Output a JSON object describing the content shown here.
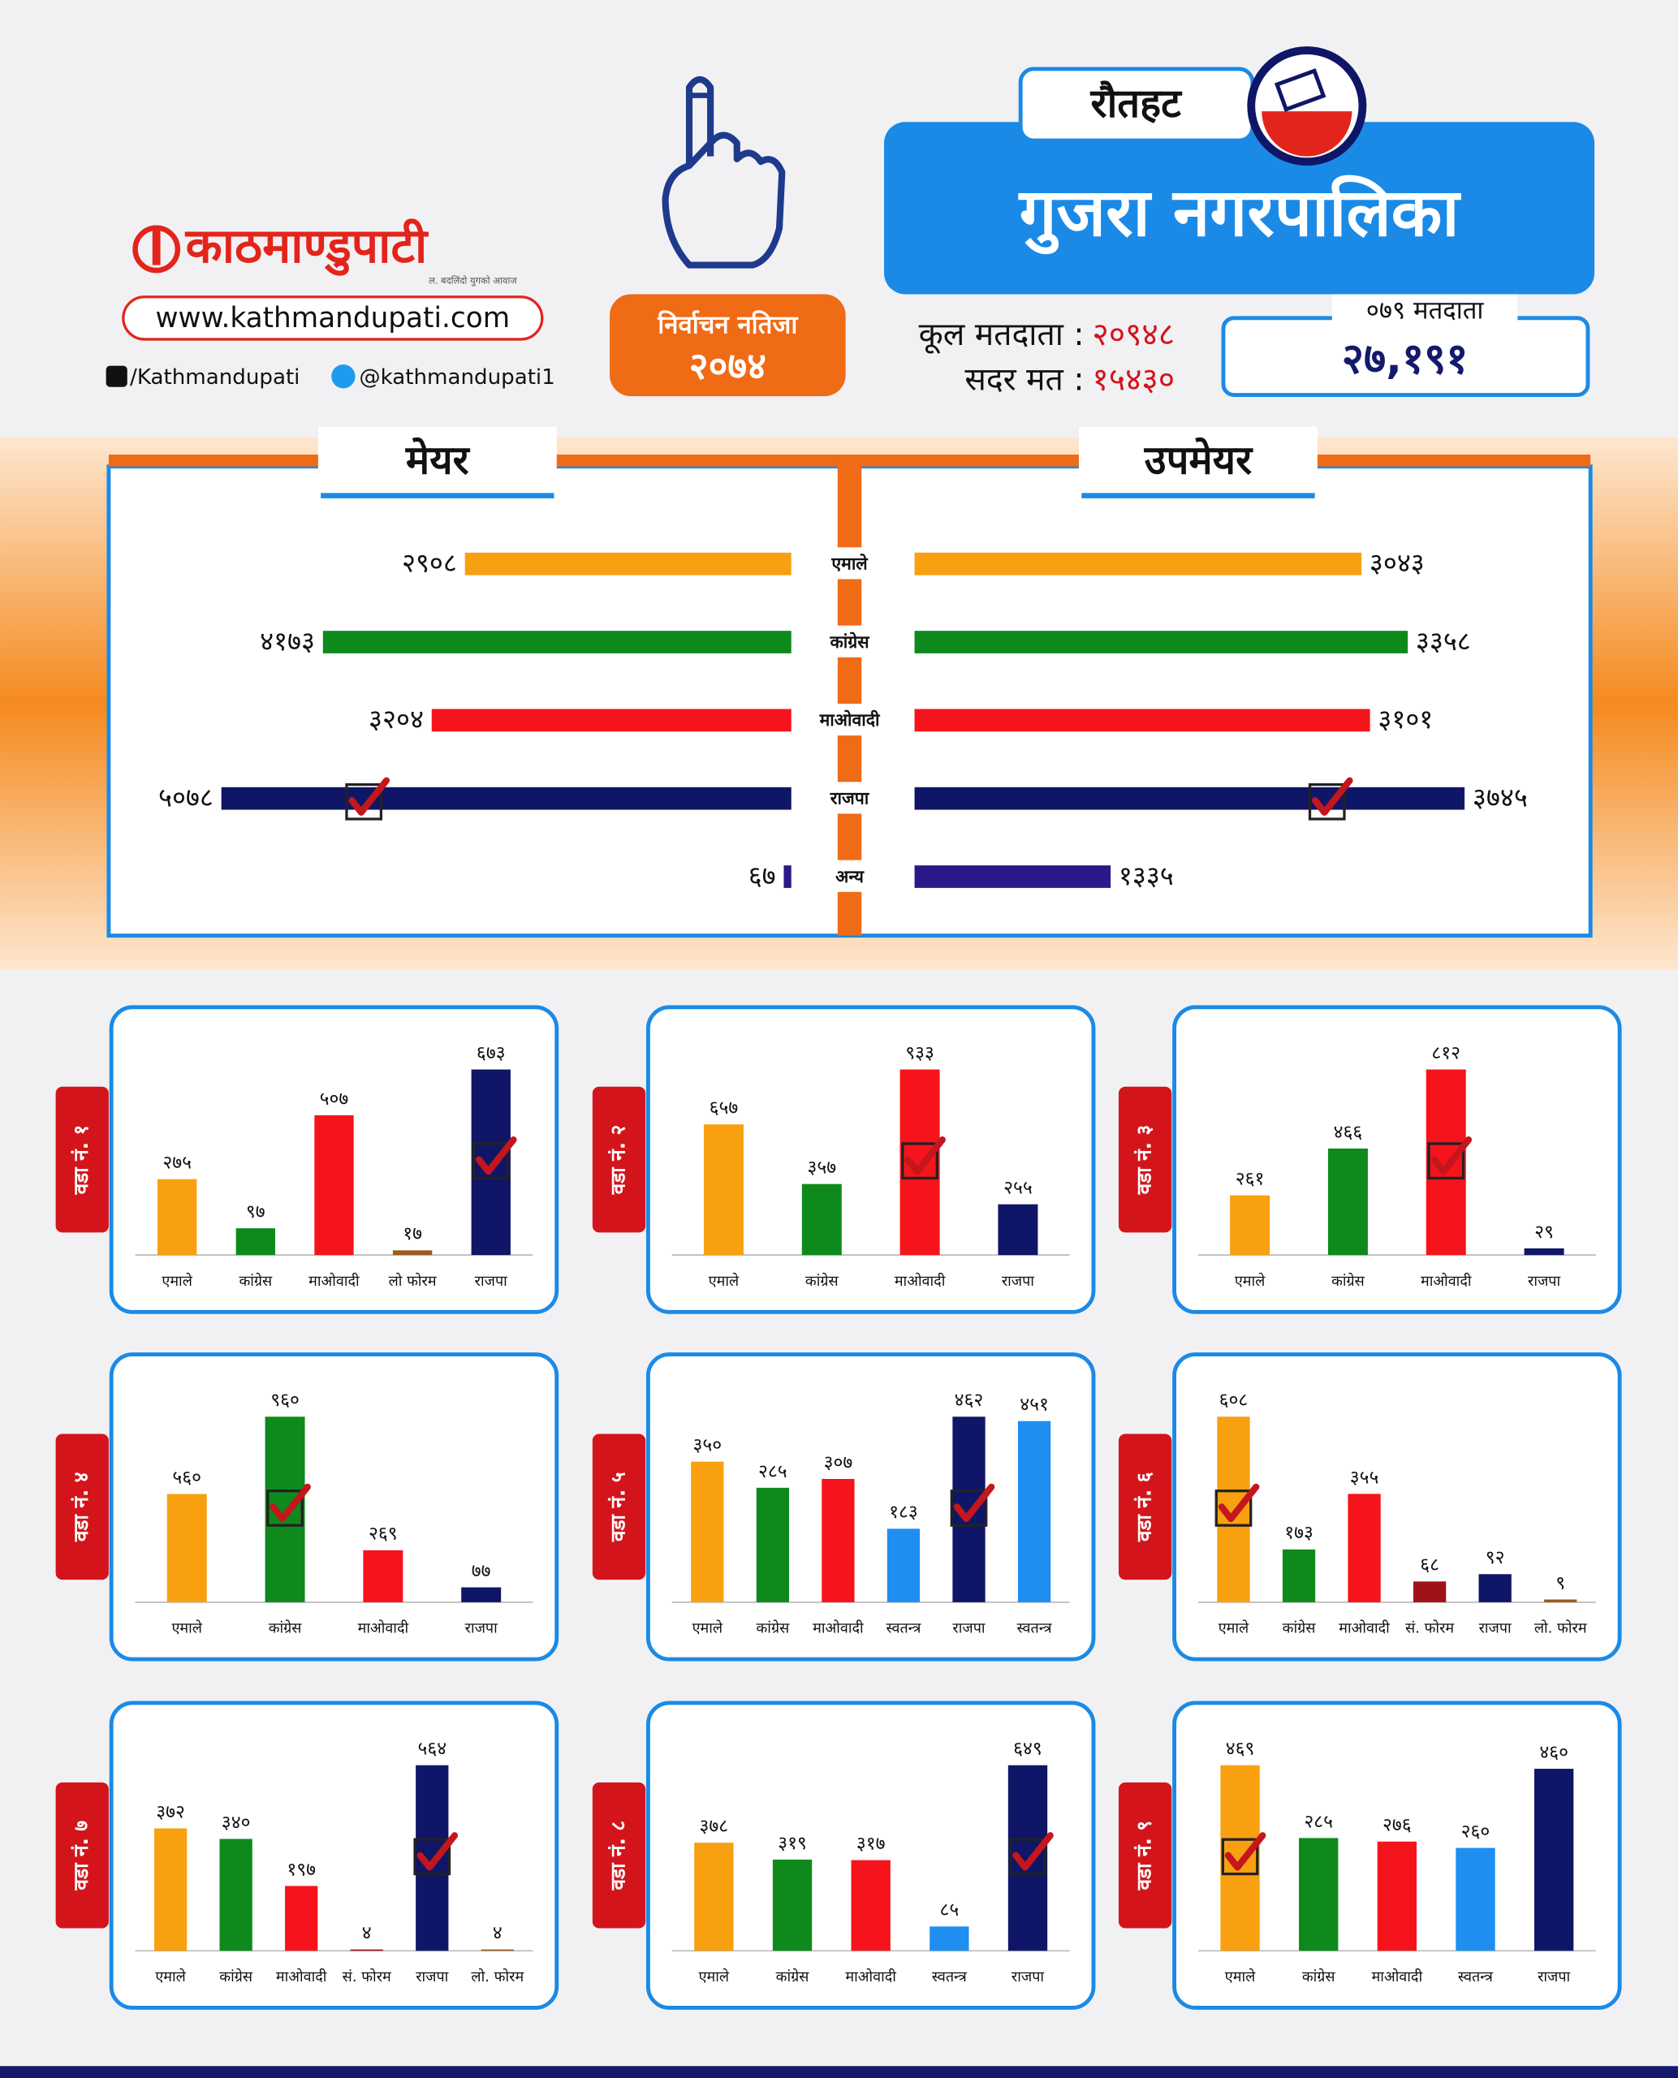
{
  "header": {
    "logo": "काठमाण्डुपाटी",
    "tagline": "ल. बदलिंदो युगको आवाज",
    "website": "www.kathmandupati.com",
    "facebook": "/Kathmandupati",
    "twitter": "@kathmandupati1",
    "badge_title": "निर्वाचन नतिजा",
    "badge_year": "२०७४",
    "district": "रौतहट",
    "municipality": "गुजरा नगरपालिका",
    "total_voters_label": "कूल मतदाता :",
    "total_voters": "२०९४८",
    "valid_votes_label": "सदर मत :",
    "valid_votes": "१५४३०",
    "voters_079_label": "०७९ मतदाता",
    "voters_079": "२७,१९१"
  },
  "chart_data": [
    {
      "type": "diverging-bar",
      "categories": [
        "एमाले",
        "कांग्रेस",
        "माओवादी",
        "राजपा",
        "अन्य"
      ],
      "colors": [
        "#f8a010",
        "#0e8a1c",
        "#f5141c",
        "#0f1667",
        "#2c1888"
      ],
      "series": [
        {
          "name": "मेयर",
          "values": [
            2908,
            4173,
            3204,
            5078,
            67
          ],
          "value_labels": [
            "२९०८",
            "४१७३",
            "३२०४",
            "५०७८",
            "६७"
          ],
          "winner": 3
        },
        {
          "name": "उपमेयर",
          "values": [
            3043,
            3358,
            3101,
            3745,
            1335
          ],
          "value_labels": [
            "३०४३",
            "३३५८",
            "३१०१",
            "३७४५",
            "१३३५"
          ],
          "winner": 3
        }
      ]
    },
    {
      "type": "bar",
      "title": "वडा नं. १",
      "categories": [
        "एमाले",
        "कांग्रेस",
        "माओवादी",
        "लो फोरम",
        "राजपा"
      ],
      "values": [
        275,
        97,
        507,
        17,
        673
      ],
      "value_labels": [
        "२७५",
        "९७",
        "५०७",
        "१७",
        "६७३"
      ],
      "colors": [
        "#f8a010",
        "#0e8a1c",
        "#f5141c",
        "#9c5a1c",
        "#0f1667"
      ],
      "winner": 4
    },
    {
      "type": "bar",
      "title": "वडा नं. २",
      "categories": [
        "एमाले",
        "कांग्रेस",
        "माओवादी",
        "राजपा"
      ],
      "values": [
        657,
        357,
        933,
        255
      ],
      "value_labels": [
        "६५७",
        "३५७",
        "९३३",
        "२५५"
      ],
      "colors": [
        "#f8a010",
        "#0e8a1c",
        "#f5141c",
        "#0f1667"
      ],
      "winner": 2
    },
    {
      "type": "bar",
      "title": "वडा नं. ३",
      "categories": [
        "एमाले",
        "कांग्रेस",
        "माओवादी",
        "राजपा"
      ],
      "values": [
        261,
        466,
        812,
        29
      ],
      "value_labels": [
        "२६१",
        "४६६",
        "८१२",
        "२९"
      ],
      "colors": [
        "#f8a010",
        "#0e8a1c",
        "#f5141c",
        "#0f1667"
      ],
      "winner": 2
    },
    {
      "type": "bar",
      "title": "वडा नं. ४",
      "categories": [
        "एमाले",
        "कांग्रेस",
        "माओवादी",
        "राजपा"
      ],
      "values": [
        560,
        960,
        269,
        77
      ],
      "value_labels": [
        "५६०",
        "९६०",
        "२६९",
        "७७"
      ],
      "colors": [
        "#f8a010",
        "#0e8a1c",
        "#f5141c",
        "#0f1667"
      ],
      "winner": 1
    },
    {
      "type": "bar",
      "title": "वडा नं. ५",
      "categories": [
        "एमाले",
        "कांग्रेस",
        "माओवादी",
        "स्वतन्त्र",
        "राजपा",
        "स्वतन्त्र"
      ],
      "values": [
        350,
        285,
        307,
        183,
        462,
        451
      ],
      "value_labels": [
        "३५०",
        "२८५",
        "३०७",
        "१८३",
        "४६२",
        "४५१"
      ],
      "colors": [
        "#f8a010",
        "#0e8a1c",
        "#f5141c",
        "#1e8ff0",
        "#0f1667",
        "#1e8ff0"
      ],
      "winner": 4
    },
    {
      "type": "bar",
      "title": "वडा नं. ६",
      "categories": [
        "एमाले",
        "कांग्रेस",
        "माओवादी",
        "सं. फोरम",
        "राजपा",
        "लो. फोरम"
      ],
      "values": [
        608,
        173,
        355,
        68,
        92,
        9
      ],
      "value_labels": [
        "६०८",
        "१७३",
        "३५५",
        "६८",
        "९२",
        "९"
      ],
      "colors": [
        "#f8a010",
        "#0e8a1c",
        "#f5141c",
        "#a01218",
        "#0f1667",
        "#9c5a1c"
      ],
      "winner": 0
    },
    {
      "type": "bar",
      "title": "वडा नं. ७",
      "categories": [
        "एमाले",
        "कांग्रेस",
        "माओवादी",
        "सं. फोरम",
        "राजपा",
        "लो. फोरम"
      ],
      "values": [
        372,
        340,
        197,
        4,
        564,
        4
      ],
      "value_labels": [
        "३७२",
        "३४०",
        "१९७",
        "४",
        "५६४",
        "४"
      ],
      "colors": [
        "#f8a010",
        "#0e8a1c",
        "#f5141c",
        "#a01218",
        "#0f1667",
        "#9c5a1c"
      ],
      "winner": 4
    },
    {
      "type": "bar",
      "title": "वडा नं. ८",
      "categories": [
        "एमाले",
        "कांग्रेस",
        "माओवादी",
        "स्वतन्त्र",
        "राजपा"
      ],
      "values": [
        378,
        319,
        317,
        85,
        649
      ],
      "value_labels": [
        "३७८",
        "३१९",
        "३१७",
        "८५",
        "६४९"
      ],
      "colors": [
        "#f8a010",
        "#0e8a1c",
        "#f5141c",
        "#1e8ff0",
        "#0f1667"
      ],
      "winner": 4
    },
    {
      "type": "bar",
      "title": "वडा नं. ९",
      "categories": [
        "एमाले",
        "कांग्रेस",
        "माओवादी",
        "स्वतन्त्र",
        "राजपा"
      ],
      "values": [
        469,
        285,
        276,
        260,
        460
      ],
      "value_labels": [
        "४६९",
        "२८५",
        "२७६",
        "२६०",
        "४६०"
      ],
      "colors": [
        "#f8a010",
        "#0e8a1c",
        "#f5141c",
        "#1e8ff0",
        "#0f1667"
      ],
      "winner": 0
    }
  ]
}
